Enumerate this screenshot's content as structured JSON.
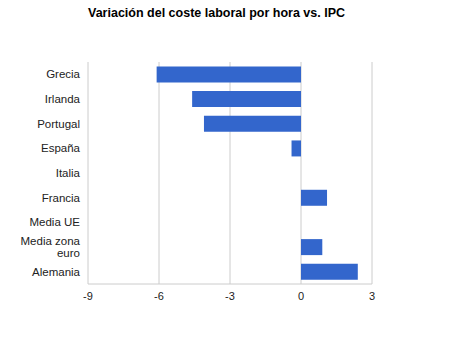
{
  "chart_data": {
    "type": "bar",
    "title": "Variación del coste laboral por hora vs. IPC",
    "orientation": "horizontal",
    "categories": [
      "Grecia",
      "Irlanda",
      "Portugal",
      "España",
      "Italia",
      "Francia",
      "Media UE",
      "Media zona euro",
      "Alemania"
    ],
    "values": [
      -6.1,
      -4.6,
      -4.1,
      -0.4,
      0,
      1.1,
      0,
      0.9,
      2.4
    ],
    "color": "#3366cc",
    "xlim": [
      -9,
      3
    ],
    "xticks": [
      -9,
      -6,
      -3,
      0,
      3
    ],
    "grid": true
  }
}
